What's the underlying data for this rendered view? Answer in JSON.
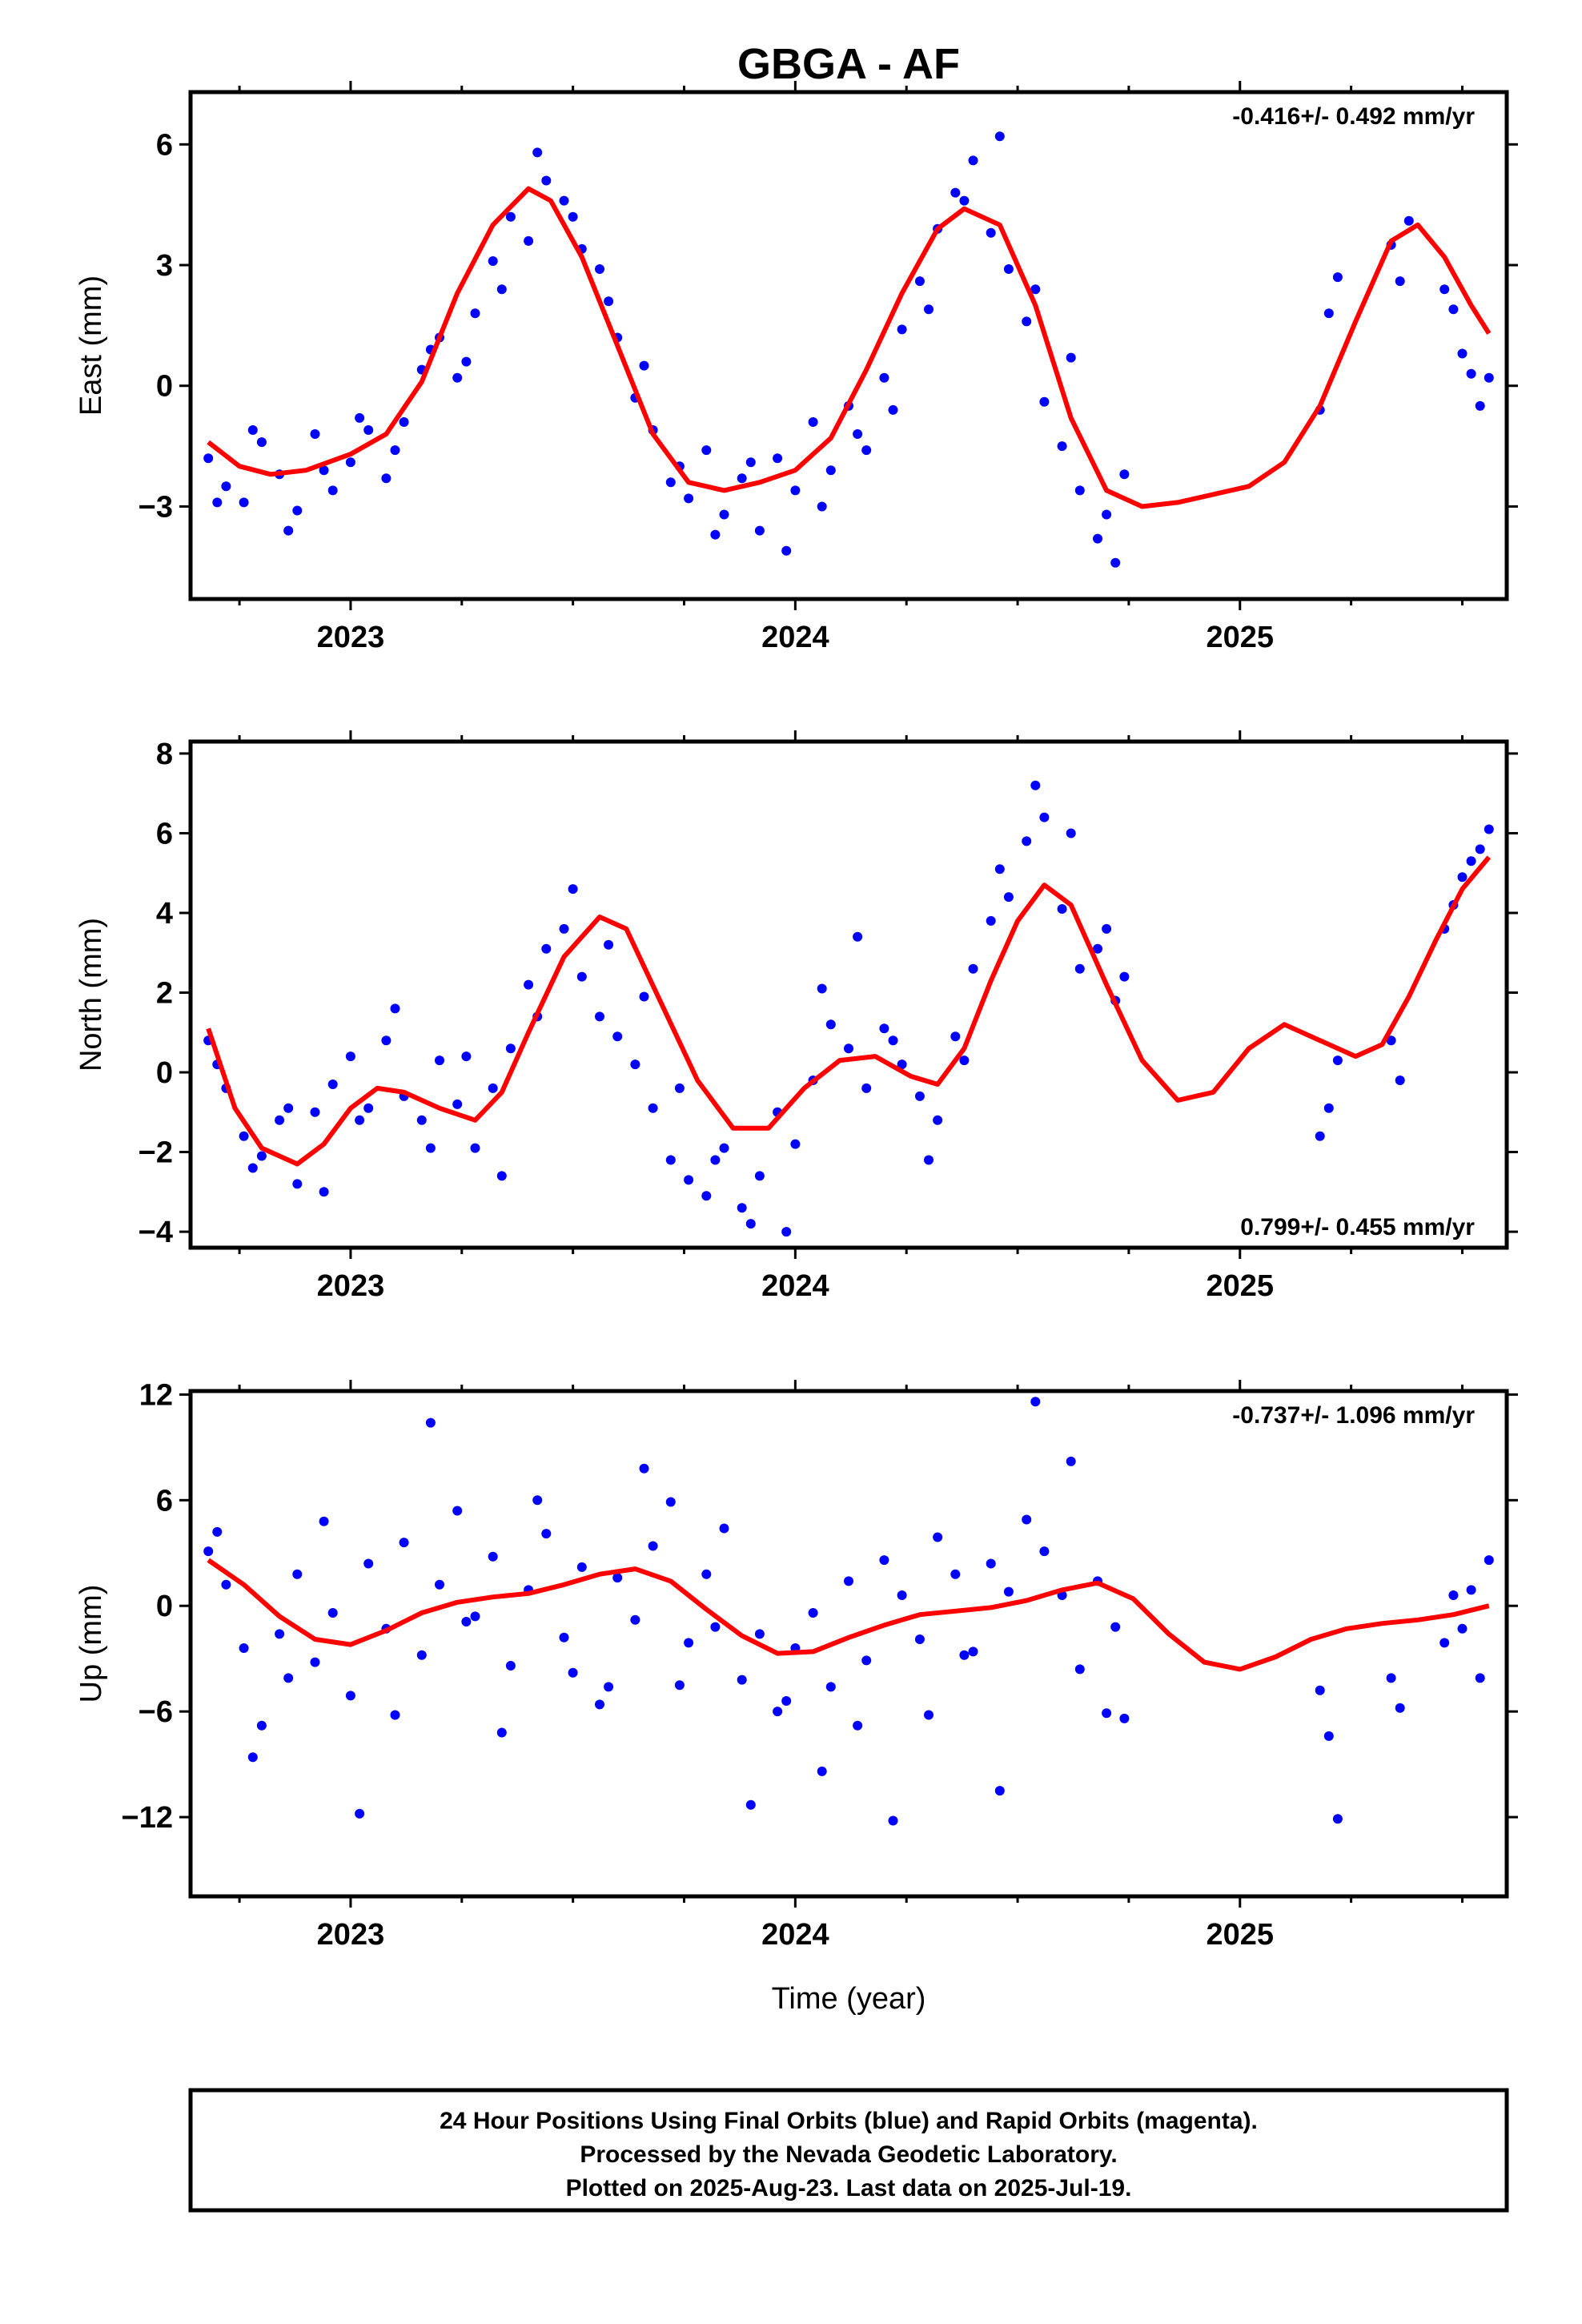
{
  "chart_data": [
    {
      "type": "scatter",
      "panel": "east",
      "title": "GBGA - AF",
      "ylabel": "East (mm)",
      "xlabel": "",
      "xlim": [
        2022.64,
        2025.6
      ],
      "ylim": [
        -5.3,
        7.3
      ],
      "xticks": [
        2023,
        2024,
        2025
      ],
      "yticks": [
        -3,
        0,
        3,
        6
      ],
      "rate_label": "-0.416+/- 0.492 mm/yr",
      "rate_position": "top-right",
      "grid": false,
      "series": [
        {
          "kind": "points",
          "color": "#0000ff",
          "x": [
            2022.68,
            2022.72,
            2022.76,
            2022.8,
            2022.84,
            2022.88,
            2022.92,
            2022.96,
            2023.0,
            2023.04,
            2023.08,
            2023.12,
            2023.16,
            2023.2,
            2023.24,
            2023.28,
            2023.32,
            2023.36,
            2023.4,
            2023.44,
            2023.48,
            2023.52,
            2023.56,
            2023.6,
            2023.64,
            2023.68,
            2023.72,
            2023.76,
            2023.8,
            2023.84,
            2023.88,
            2023.92,
            2023.96,
            2024.0,
            2024.04,
            2024.08,
            2024.12,
            2024.16,
            2024.2,
            2024.24,
            2024.28,
            2024.32,
            2024.36,
            2024.4,
            2024.44,
            2024.48,
            2024.52,
            2024.56,
            2024.6,
            2024.64,
            2024.68,
            2024.72,
            2024.74,
            2025.18,
            2025.2,
            2025.22,
            2025.34,
            2025.36,
            2025.38,
            2025.46,
            2025.48,
            2025.5,
            2025.52,
            2025.54,
            2025.56
          ],
          "y": [
            -1.8,
            -2.5,
            -2.9,
            -1.4,
            -2.2,
            -3.1,
            -1.2,
            -2.6,
            -1.9,
            -1.1,
            -2.3,
            -0.9,
            0.4,
            1.2,
            0.2,
            1.8,
            3.1,
            4.2,
            3.6,
            5.1,
            4.6,
            3.4,
            2.9,
            1.2,
            -0.3,
            -1.1,
            -2.4,
            -2.8,
            -1.6,
            -3.2,
            -2.3,
            -3.6,
            -1.8,
            -2.6,
            -0.9,
            -2.1,
            -0.5,
            -1.6,
            0.2,
            1.4,
            2.6,
            3.9,
            4.8,
            5.6,
            3.8,
            2.9,
            1.6,
            -0.4,
            -1.5,
            -2.6,
            -3.8,
            -4.4,
            -2.2,
            -0.6,
            1.8,
            2.7,
            3.5,
            2.6,
            4.1,
            2.4,
            1.9,
            0.8,
            0.3,
            -0.5,
            0.2
          ],
          "x_extra": [
            2022.7,
            2022.78,
            2022.86,
            2022.94,
            2023.02,
            2023.1,
            2023.18,
            2023.26,
            2023.34,
            2023.42,
            2023.5,
            2023.58,
            2023.66,
            2023.74,
            2023.82,
            2023.9,
            2023.98,
            2024.06,
            2024.14,
            2024.22,
            2024.3,
            2024.38,
            2024.46,
            2024.54,
            2024.62,
            2024.7
          ],
          "y_extra": [
            -2.9,
            -1.1,
            -3.6,
            -2.1,
            -0.8,
            -1.6,
            0.9,
            0.6,
            2.4,
            5.8,
            4.2,
            2.1,
            0.5,
            -2.0,
            -3.7,
            -1.9,
            -4.1,
            -3.0,
            -1.2,
            -0.6,
            1.9,
            4.6,
            6.2,
            2.4,
            0.7,
            -3.2
          ]
        },
        {
          "kind": "line",
          "color": "#ff0000",
          "x": [
            2022.68,
            2022.75,
            2022.82,
            2022.9,
            2023.0,
            2023.08,
            2023.16,
            2023.24,
            2023.32,
            2023.4,
            2023.45,
            2023.52,
            2023.6,
            2023.68,
            2023.76,
            2023.84,
            2023.92,
            2024.0,
            2024.08,
            2024.16,
            2024.24,
            2024.32,
            2024.38,
            2024.46,
            2024.54,
            2024.62,
            2024.7,
            2024.78,
            2024.86,
            2024.94,
            2025.02,
            2025.1,
            2025.18,
            2025.26,
            2025.34,
            2025.4,
            2025.46,
            2025.52,
            2025.56
          ],
          "y": [
            -1.4,
            -2.0,
            -2.2,
            -2.1,
            -1.7,
            -1.2,
            0.1,
            2.3,
            4.0,
            4.9,
            4.6,
            3.2,
            1.0,
            -1.2,
            -2.4,
            -2.6,
            -2.4,
            -2.1,
            -1.3,
            0.4,
            2.3,
            3.9,
            4.4,
            4.0,
            2.0,
            -0.8,
            -2.6,
            -3.0,
            -2.9,
            -2.7,
            -2.5,
            -1.9,
            -0.5,
            1.6,
            3.6,
            4.0,
            3.2,
            2.0,
            1.3
          ]
        }
      ]
    },
    {
      "type": "scatter",
      "panel": "north",
      "title": "",
      "ylabel": "North (mm)",
      "xlabel": "",
      "xlim": [
        2022.64,
        2025.6
      ],
      "ylim": [
        -4.4,
        8.3
      ],
      "xticks": [
        2023,
        2024,
        2025
      ],
      "yticks": [
        -4,
        -2,
        0,
        2,
        4,
        6,
        8
      ],
      "rate_label": "0.799+/- 0.455 mm/yr",
      "rate_position": "bottom-right",
      "grid": false,
      "series": [
        {
          "kind": "points",
          "color": "#0000ff",
          "x": [
            2022.68,
            2022.72,
            2022.76,
            2022.8,
            2022.84,
            2022.88,
            2022.92,
            2022.96,
            2023.0,
            2023.04,
            2023.08,
            2023.12,
            2023.16,
            2023.2,
            2023.24,
            2023.28,
            2023.32,
            2023.36,
            2023.4,
            2023.44,
            2023.48,
            2023.52,
            2023.56,
            2023.6,
            2023.64,
            2023.68,
            2023.72,
            2023.76,
            2023.8,
            2023.84,
            2023.88,
            2023.92,
            2023.96,
            2024.0,
            2024.04,
            2024.08,
            2024.12,
            2024.16,
            2024.2,
            2024.24,
            2024.28,
            2024.32,
            2024.36,
            2024.4,
            2024.44,
            2024.48,
            2024.52,
            2024.56,
            2024.6,
            2024.64,
            2024.68,
            2024.72,
            2024.74,
            2025.18,
            2025.2,
            2025.22,
            2025.34,
            2025.36,
            2025.46,
            2025.48,
            2025.5,
            2025.52,
            2025.54,
            2025.56
          ],
          "y": [
            0.8,
            -0.4,
            -1.6,
            -2.1,
            -1.2,
            -2.8,
            -1.0,
            -0.3,
            0.4,
            -0.9,
            0.8,
            -0.6,
            -1.2,
            0.3,
            -0.8,
            -1.9,
            -0.4,
            0.6,
            2.2,
            3.1,
            3.6,
            2.4,
            1.4,
            0.9,
            0.2,
            -0.9,
            -2.2,
            -2.7,
            -3.1,
            -1.9,
            -3.4,
            -2.6,
            -1.0,
            -1.8,
            -0.2,
            1.2,
            0.6,
            -0.4,
            1.1,
            0.2,
            -0.6,
            -1.2,
            0.9,
            2.6,
            3.8,
            4.4,
            5.8,
            6.4,
            4.1,
            2.6,
            3.1,
            1.8,
            2.4,
            -1.6,
            -0.9,
            0.3,
            0.8,
            -0.2,
            3.6,
            4.2,
            4.9,
            5.3,
            5.6,
            6.1
          ],
          "x_extra": [
            2022.7,
            2022.78,
            2022.86,
            2022.94,
            2023.02,
            2023.1,
            2023.18,
            2023.26,
            2023.34,
            2023.42,
            2023.5,
            2023.58,
            2023.66,
            2023.74,
            2023.82,
            2023.9,
            2023.98,
            2024.06,
            2024.14,
            2024.22,
            2024.3,
            2024.38,
            2024.46,
            2024.54,
            2024.62,
            2024.7
          ],
          "y_extra": [
            0.2,
            -2.4,
            -0.9,
            -3.0,
            -1.2,
            1.6,
            -1.9,
            0.4,
            -2.6,
            1.4,
            4.6,
            3.2,
            1.9,
            -0.4,
            -2.2,
            -3.8,
            -4.0,
            2.1,
            3.4,
            0.8,
            -2.2,
            0.3,
            5.1,
            7.2,
            6.0,
            3.6
          ]
        },
        {
          "kind": "line",
          "color": "#ff0000",
          "x": [
            2022.68,
            2022.74,
            2022.8,
            2022.88,
            2022.94,
            2023.0,
            2023.06,
            2023.12,
            2023.2,
            2023.28,
            2023.34,
            2023.4,
            2023.48,
            2023.56,
            2023.62,
            2023.7,
            2023.78,
            2023.86,
            2023.94,
            2024.02,
            2024.1,
            2024.18,
            2024.26,
            2024.32,
            2024.38,
            2024.44,
            2024.5,
            2024.56,
            2024.62,
            2024.7,
            2024.78,
            2024.86,
            2024.94,
            2025.02,
            2025.1,
            2025.18,
            2025.26,
            2025.32,
            2025.38,
            2025.44,
            2025.5,
            2025.56
          ],
          "y": [
            1.1,
            -0.9,
            -1.9,
            -2.3,
            -1.8,
            -0.9,
            -0.4,
            -0.5,
            -0.9,
            -1.2,
            -0.5,
            1.0,
            2.9,
            3.9,
            3.6,
            1.7,
            -0.2,
            -1.4,
            -1.4,
            -0.4,
            0.3,
            0.4,
            -0.1,
            -0.3,
            0.6,
            2.3,
            3.8,
            4.7,
            4.2,
            2.2,
            0.3,
            -0.7,
            -0.5,
            0.6,
            1.2,
            0.8,
            0.4,
            0.7,
            1.9,
            3.3,
            4.6,
            5.4
          ]
        }
      ]
    },
    {
      "type": "scatter",
      "panel": "up",
      "title": "",
      "ylabel": "Up (mm)",
      "xlabel": "Time (year)",
      "xlim": [
        2022.64,
        2025.6
      ],
      "ylim": [
        -16.5,
        12.2
      ],
      "xticks": [
        2023,
        2024,
        2025
      ],
      "yticks": [
        -12,
        -6,
        0,
        6,
        12
      ],
      "rate_label": "-0.737+/- 1.096 mm/yr",
      "rate_position": "top-right",
      "grid": false,
      "series": [
        {
          "kind": "points",
          "color": "#0000ff",
          "x": [
            2022.68,
            2022.72,
            2022.76,
            2022.8,
            2022.84,
            2022.88,
            2022.92,
            2022.96,
            2023.0,
            2023.04,
            2023.08,
            2023.12,
            2023.16,
            2023.2,
            2023.24,
            2023.28,
            2023.32,
            2023.36,
            2023.4,
            2023.44,
            2023.48,
            2023.52,
            2023.56,
            2023.6,
            2023.64,
            2023.68,
            2023.72,
            2023.76,
            2023.8,
            2023.84,
            2023.88,
            2023.92,
            2023.96,
            2024.0,
            2024.04,
            2024.08,
            2024.12,
            2024.16,
            2024.2,
            2024.24,
            2024.28,
            2024.32,
            2024.36,
            2024.4,
            2024.44,
            2024.48,
            2024.52,
            2024.56,
            2024.6,
            2024.64,
            2024.68,
            2024.72,
            2024.74,
            2025.18,
            2025.2,
            2025.22,
            2025.34,
            2025.36,
            2025.46,
            2025.48,
            2025.5,
            2025.52,
            2025.54,
            2025.56
          ],
          "y": [
            3.1,
            1.2,
            -2.4,
            -6.8,
            -1.6,
            1.8,
            -3.2,
            -0.4,
            -5.1,
            2.4,
            -1.3,
            3.6,
            -2.8,
            1.2,
            5.4,
            -0.6,
            2.8,
            -3.4,
            0.9,
            4.1,
            -1.8,
            2.2,
            -5.6,
            1.6,
            -0.8,
            3.4,
            5.9,
            -2.1,
            1.8,
            4.4,
            -4.2,
            -1.6,
            -6.0,
            -2.4,
            -0.4,
            -4.6,
            1.4,
            -3.1,
            2.6,
            0.6,
            -1.9,
            3.9,
            1.8,
            -2.6,
            2.4,
            0.8,
            4.9,
            3.1,
            0.6,
            -3.6,
            1.4,
            -1.2,
            -6.4,
            -4.8,
            -7.4,
            -12.1,
            -4.1,
            -5.8,
            -2.1,
            0.6,
            -1.3,
            0.9,
            -4.1,
            2.6
          ],
          "x_extra": [
            2022.7,
            2022.78,
            2022.86,
            2022.94,
            2023.02,
            2023.1,
            2023.18,
            2023.26,
            2023.34,
            2023.42,
            2023.5,
            2023.58,
            2023.66,
            2023.74,
            2023.82,
            2023.9,
            2023.98,
            2024.06,
            2024.14,
            2024.22,
            2024.3,
            2024.38,
            2024.46,
            2024.54,
            2024.62,
            2024.7
          ],
          "y_extra": [
            4.2,
            -8.6,
            -4.1,
            4.8,
            -11.8,
            -6.2,
            10.4,
            -0.9,
            -7.2,
            6.0,
            -3.8,
            -4.6,
            7.8,
            -4.5,
            -1.2,
            -11.3,
            -5.4,
            -9.4,
            -6.8,
            -12.2,
            -6.2,
            -2.8,
            -10.5,
            11.6,
            8.2,
            -6.1
          ]
        },
        {
          "kind": "line",
          "color": "#ff0000",
          "x": [
            2022.68,
            2022.76,
            2022.84,
            2022.92,
            2023.0,
            2023.08,
            2023.16,
            2023.24,
            2023.32,
            2023.4,
            2023.48,
            2023.56,
            2023.64,
            2023.72,
            2023.8,
            2023.88,
            2023.96,
            2024.04,
            2024.12,
            2024.2,
            2024.28,
            2024.36,
            2024.44,
            2024.52,
            2024.6,
            2024.68,
            2024.76,
            2024.84,
            2024.92,
            2025.0,
            2025.08,
            2025.16,
            2025.24,
            2025.32,
            2025.4,
            2025.48,
            2025.56
          ],
          "y": [
            2.6,
            1.2,
            -0.6,
            -1.9,
            -2.2,
            -1.4,
            -0.4,
            0.2,
            0.5,
            0.7,
            1.2,
            1.8,
            2.1,
            1.4,
            -0.2,
            -1.7,
            -2.7,
            -2.6,
            -1.8,
            -1.1,
            -0.5,
            -0.3,
            -0.1,
            0.3,
            0.9,
            1.3,
            0.4,
            -1.6,
            -3.2,
            -3.6,
            -2.9,
            -1.9,
            -1.3,
            -1.0,
            -0.8,
            -0.5,
            0.0
          ]
        }
      ]
    }
  ],
  "footer": {
    "line1": "24 Hour Positions Using Final Orbits (blue) and Rapid Orbits (magenta).",
    "line2": "Processed by the Nevada Geodetic Laboratory.",
    "line3": "Plotted on 2025-Aug-23. Last data on 2025-Jul-19."
  }
}
